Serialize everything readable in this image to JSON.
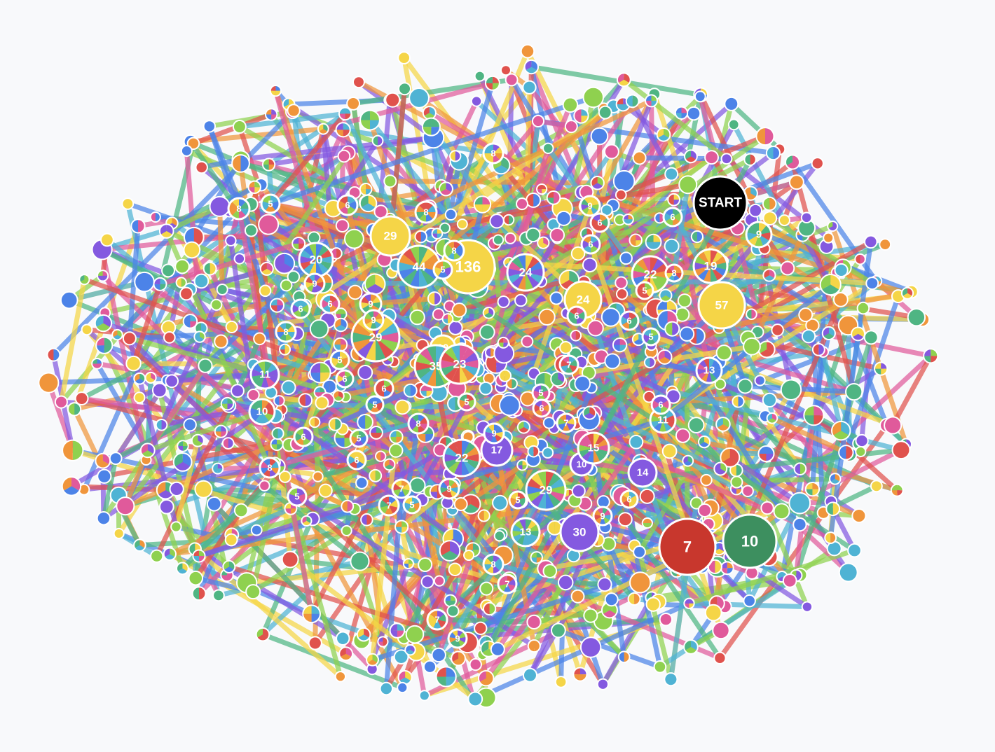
{
  "graph": {
    "background": "#f8f9fb",
    "palette": [
      "#4fb3d4",
      "#8fd14f",
      "#e05a9b",
      "#8459e0",
      "#f0953b",
      "#e0524d",
      "#4c83e8",
      "#4fb583",
      "#f5d547"
    ],
    "labeled_nodes": [
      {
        "label": "START",
        "fill": "#000000",
        "kind": "solid"
      },
      {
        "label": "136",
        "fill": "#f5d547",
        "kind": "solid"
      },
      {
        "label": "57",
        "fill": "#f5d547",
        "kind": "solid"
      },
      {
        "label": "29",
        "fill": "#f5d547",
        "kind": "solid"
      },
      {
        "label": "24",
        "fill": "#f5d547",
        "kind": "solid"
      },
      {
        "label": "10",
        "fill": "#f5d547",
        "kind": "solid"
      },
      {
        "label": "7",
        "fill": "#c8372d",
        "kind": "solid"
      },
      {
        "label": "10",
        "fill": "#3d8f5f",
        "kind": "solid"
      },
      {
        "label": "30",
        "fill": "#8459e0",
        "kind": "solid"
      },
      {
        "label": "14",
        "fill": "#8459e0",
        "kind": "solid"
      },
      {
        "label": "17",
        "fill": "#8459e0",
        "kind": "solid"
      },
      {
        "label": "10",
        "fill": "#8459e0",
        "kind": "solid"
      },
      {
        "label": "44",
        "kind": "pie"
      },
      {
        "label": "20",
        "kind": "pie"
      },
      {
        "label": "29",
        "kind": "pie"
      },
      {
        "label": "35",
        "kind": "pie"
      },
      {
        "label": "23",
        "kind": "pie"
      },
      {
        "label": "24",
        "kind": "pie"
      },
      {
        "label": "22",
        "kind": "pie"
      },
      {
        "label": "19",
        "kind": "pie"
      },
      {
        "label": "22",
        "kind": "pie"
      },
      {
        "label": "29",
        "kind": "pie"
      },
      {
        "label": "15",
        "kind": "pie"
      },
      {
        "label": "13",
        "kind": "pie"
      },
      {
        "label": "11",
        "kind": "pie"
      },
      {
        "label": "10",
        "kind": "pie"
      },
      {
        "label": "13",
        "kind": "pie"
      },
      {
        "label": "11",
        "kind": "pie"
      },
      {
        "label": "9",
        "kind": "pie"
      },
      {
        "label": "8",
        "kind": "pie"
      },
      {
        "label": "5",
        "kind": "pie"
      },
      {
        "label": "6",
        "kind": "pie"
      },
      {
        "label": "8",
        "kind": "pie"
      },
      {
        "label": "8",
        "kind": "pie"
      },
      {
        "label": "5",
        "kind": "pie"
      },
      {
        "label": "9",
        "kind": "pie"
      },
      {
        "label": "6",
        "kind": "pie"
      },
      {
        "label": "6",
        "kind": "pie"
      },
      {
        "label": "9",
        "kind": "pie"
      },
      {
        "label": "9",
        "kind": "pie"
      },
      {
        "label": "8",
        "kind": "pie"
      },
      {
        "label": "5",
        "kind": "pie"
      },
      {
        "label": "6",
        "kind": "pie"
      },
      {
        "label": "6",
        "kind": "pie"
      },
      {
        "label": "5",
        "kind": "pie"
      },
      {
        "label": "5",
        "kind": "pie"
      },
      {
        "label": "8",
        "kind": "pie"
      },
      {
        "label": "5",
        "kind": "pie"
      },
      {
        "label": "6",
        "kind": "pie"
      },
      {
        "label": "6",
        "kind": "pie"
      },
      {
        "label": "8",
        "kind": "pie"
      },
      {
        "label": "5",
        "kind": "pie"
      },
      {
        "label": "7",
        "kind": "pie"
      },
      {
        "label": "7",
        "kind": "pie"
      },
      {
        "label": "5",
        "kind": "pie"
      },
      {
        "label": "9",
        "kind": "pie"
      },
      {
        "label": "5",
        "kind": "pie"
      },
      {
        "label": "9",
        "kind": "pie"
      },
      {
        "label": "7",
        "kind": "pie"
      },
      {
        "label": "5",
        "kind": "pie"
      },
      {
        "label": "6",
        "kind": "pie"
      },
      {
        "label": "7",
        "kind": "pie"
      },
      {
        "label": "6",
        "kind": "pie"
      },
      {
        "label": "6",
        "kind": "pie"
      },
      {
        "label": "5",
        "kind": "pie"
      },
      {
        "label": "8",
        "kind": "pie"
      },
      {
        "label": "9",
        "kind": "pie"
      },
      {
        "label": "6",
        "kind": "pie"
      },
      {
        "label": "6",
        "kind": "pie"
      },
      {
        "label": "6",
        "kind": "pie"
      },
      {
        "label": "5",
        "kind": "pie"
      },
      {
        "label": "8",
        "kind": "pie"
      },
      {
        "label": "6",
        "kind": "pie"
      },
      {
        "label": "6",
        "kind": "pie"
      },
      {
        "label": "9",
        "kind": "pie"
      },
      {
        "label": "8",
        "kind": "pie"
      },
      {
        "label": "7",
        "kind": "pie"
      },
      {
        "label": "7",
        "kind": "pie"
      },
      {
        "label": "9",
        "kind": "pie"
      }
    ]
  }
}
